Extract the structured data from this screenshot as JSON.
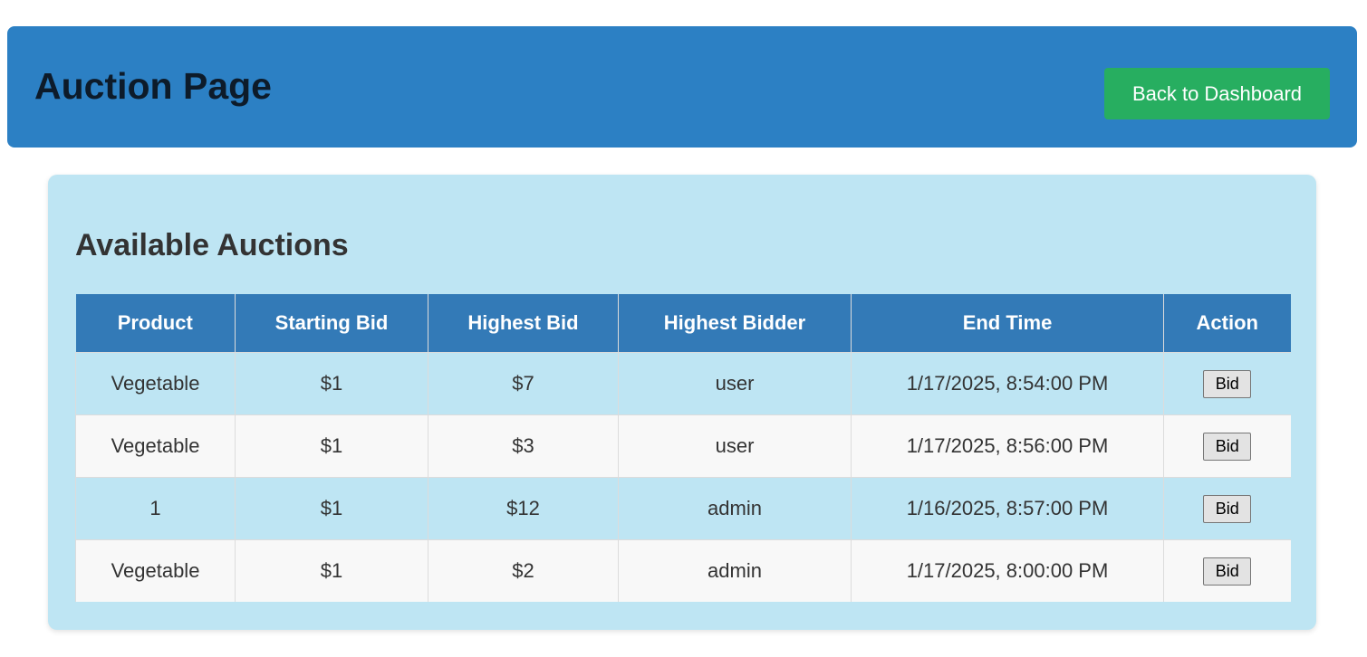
{
  "header": {
    "title": "Auction Page",
    "back_label": "Back to Dashboard"
  },
  "auctions": {
    "title": "Available Auctions",
    "columns": [
      "Product",
      "Starting Bid",
      "Highest Bid",
      "Highest Bidder",
      "End Time",
      "Action"
    ],
    "rows": [
      {
        "product": "Vegetable",
        "starting_bid": "$1",
        "highest_bid": "$7",
        "highest_bidder": "user",
        "end_time": "1/17/2025, 8:54:00 PM",
        "action": "Bid"
      },
      {
        "product": "Vegetable",
        "starting_bid": "$1",
        "highest_bid": "$3",
        "highest_bidder": "user",
        "end_time": "1/17/2025, 8:56:00 PM",
        "action": "Bid"
      },
      {
        "product": "1",
        "starting_bid": "$1",
        "highest_bid": "$12",
        "highest_bidder": "admin",
        "end_time": "1/16/2025, 8:57:00 PM",
        "action": "Bid"
      },
      {
        "product": "Vegetable",
        "starting_bid": "$1",
        "highest_bid": "$2",
        "highest_bidder": "admin",
        "end_time": "1/17/2025, 8:00:00 PM",
        "action": "Bid"
      }
    ]
  },
  "colors": {
    "header_bg": "#2c80c4",
    "back_button_bg": "#27ae60",
    "panel_bg": "#bee5f3",
    "table_header_bg": "#337ab7",
    "alt_row_bg": "#f8f8f8"
  }
}
